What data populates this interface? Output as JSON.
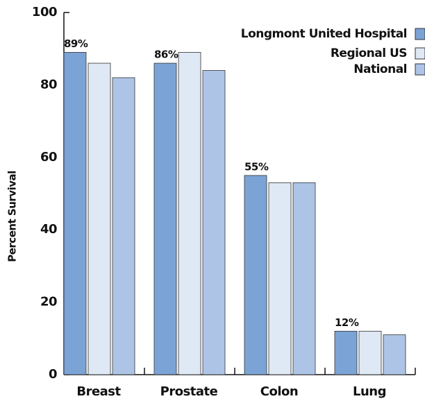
{
  "chart_data": {
    "type": "bar",
    "y_label": "Percent Survival",
    "categories": [
      "Breast",
      "Prostate",
      "Colon",
      "Lung"
    ],
    "series": [
      {
        "name": "Longmont United Hospital",
        "color": "#7ba3d6",
        "values": [
          89,
          86,
          55,
          12
        ],
        "value_labels": [
          "89%",
          "86%",
          "55%",
          "12%"
        ]
      },
      {
        "name": "Regional US",
        "color": "#dfe8f5",
        "values": [
          86,
          89,
          53,
          12
        ]
      },
      {
        "name": "National",
        "color": "#adc4e6",
        "values": [
          82,
          84,
          53,
          11
        ]
      }
    ],
    "ylim": [
      0,
      100
    ],
    "yticks": [
      0,
      20,
      40,
      60,
      80,
      100
    ],
    "legend": "top-right"
  }
}
